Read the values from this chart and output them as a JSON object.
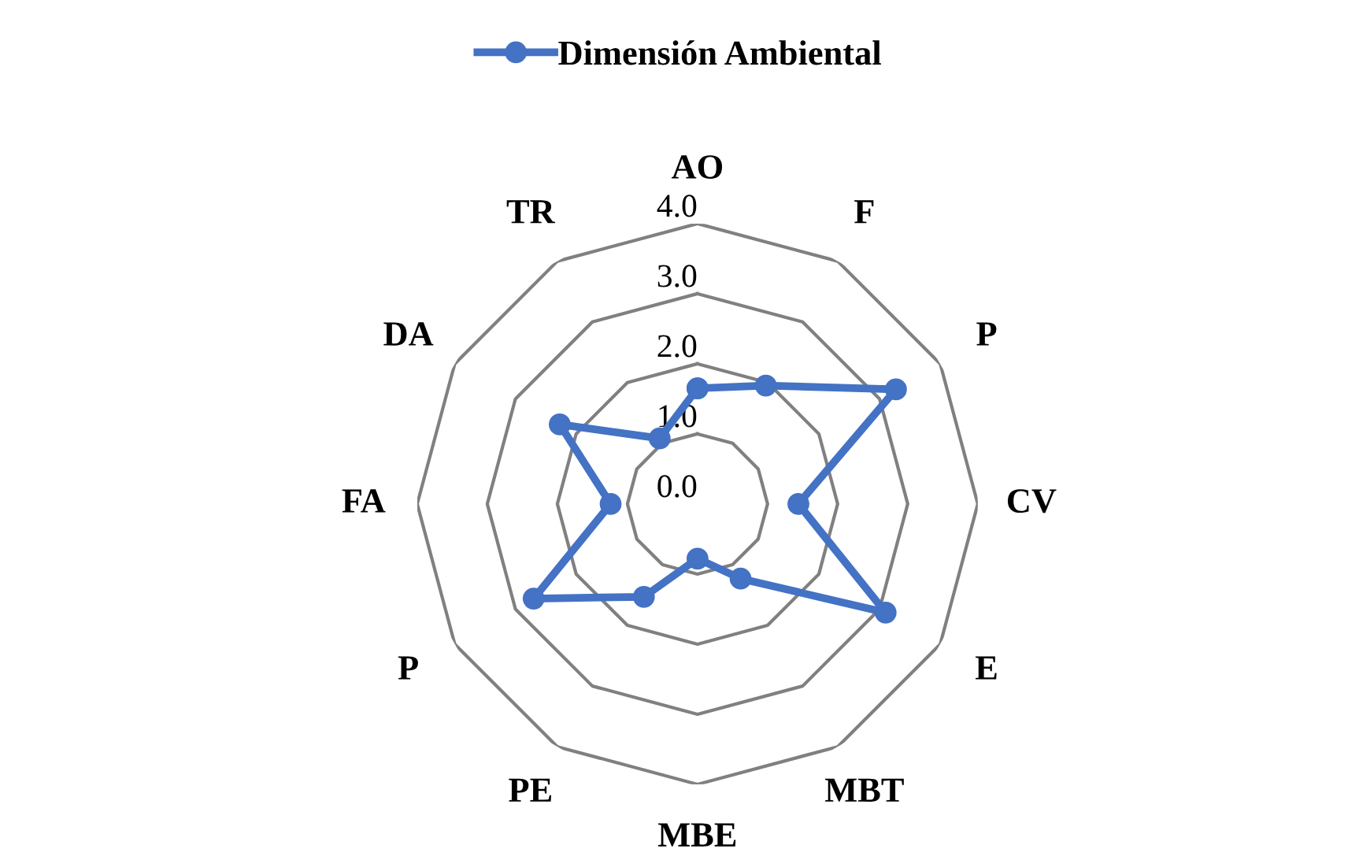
{
  "chart_data": {
    "type": "radar",
    "categories": [
      "AO",
      "F",
      "P",
      "CV",
      "E",
      "MBT",
      "MBE",
      "PE",
      "P",
      "FA",
      "DA",
      "TR"
    ],
    "series": [
      {
        "name": "Dimensión Ambiental",
        "color": "#4472c4",
        "values": [
          1.65,
          1.95,
          3.27,
          1.44,
          3.1,
          1.23,
          0.78,
          1.53,
          2.7,
          1.24,
          2.27,
          1.08
        ]
      }
    ],
    "ylim": [
      0,
      4
    ],
    "yticks": [
      {
        "value": 0,
        "label": "0.0"
      },
      {
        "value": 1,
        "label": "1.0"
      },
      {
        "value": 2,
        "label": "2.0"
      },
      {
        "value": 3,
        "label": "3.0"
      },
      {
        "value": 4,
        "label": "4.0"
      }
    ],
    "grid": true,
    "legend": "top",
    "marker": "circle",
    "line_style": "solid"
  }
}
